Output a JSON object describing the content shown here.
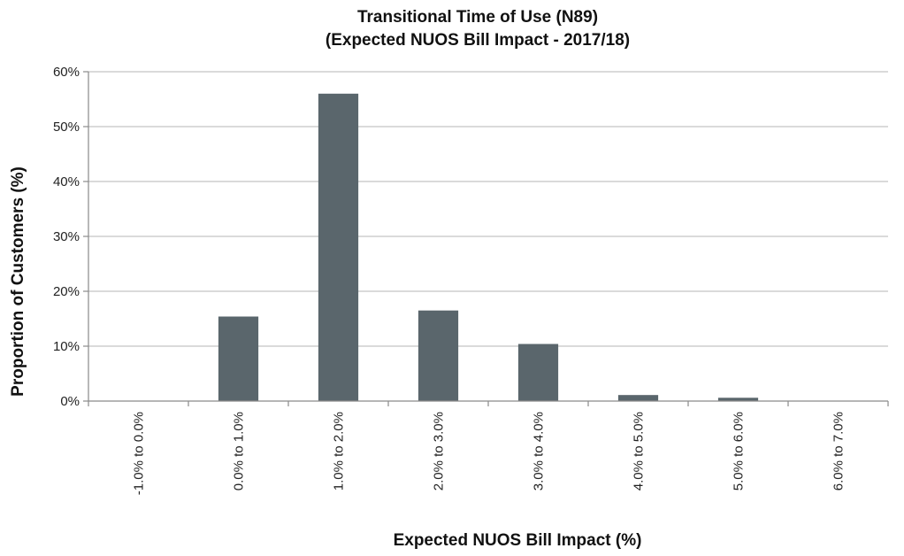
{
  "chart_data": {
    "type": "bar",
    "title": "Transitional Time of Use (N89)",
    "subtitle": "(Expected NUOS Bill Impact - 2017/18)",
    "xlabel": "Expected NUOS Bill Impact (%)",
    "ylabel": "Proportion of Customers (%)",
    "categories": [
      "-1.0% to 0.0%",
      "0.0% to 1.0%",
      "1.0% to 2.0%",
      "2.0% to 3.0%",
      "3.0% to 4.0%",
      "4.0% to 5.0%",
      "5.0% to 6.0%",
      "6.0% to 7.0%"
    ],
    "values": [
      0,
      15.4,
      56.0,
      16.5,
      10.4,
      1.1,
      0.6,
      0
    ],
    "ylim": [
      0,
      60
    ],
    "yticks": [
      0,
      10,
      20,
      30,
      40,
      50,
      60
    ],
    "ytick_labels": [
      "0%",
      "10%",
      "20%",
      "30%",
      "40%",
      "50%",
      "60%"
    ],
    "grid": true,
    "legend": "none",
    "bar_color": "#5a666c"
  }
}
